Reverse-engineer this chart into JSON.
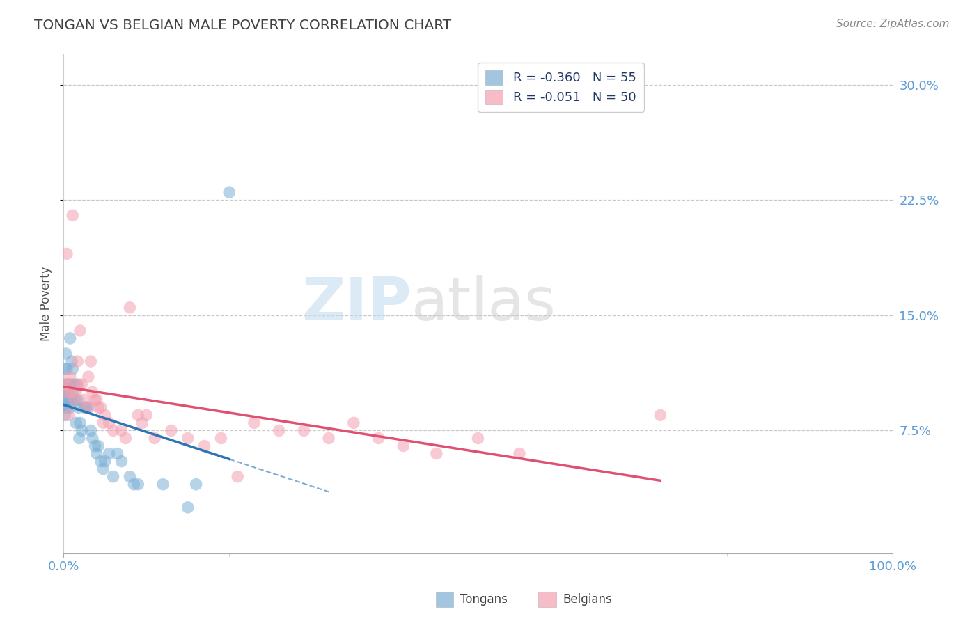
{
  "title": "TONGAN VS BELGIAN MALE POVERTY CORRELATION CHART",
  "source_text": "Source: ZipAtlas.com",
  "ylabel": "Male Poverty",
  "xlim": [
    0.0,
    1.0
  ],
  "ylim": [
    -0.005,
    0.32
  ],
  "yticks": [
    0.075,
    0.15,
    0.225,
    0.3
  ],
  "ytick_labels": [
    "7.5%",
    "15.0%",
    "22.5%",
    "30.0%"
  ],
  "xticks": [
    0.0,
    1.0
  ],
  "xtick_labels": [
    "0.0%",
    "100.0%"
  ],
  "tongan_color": "#7bafd4",
  "belgian_color": "#f4a0b0",
  "tongan_R": -0.36,
  "tongan_N": 55,
  "belgian_R": -0.051,
  "belgian_N": 50,
  "background_color": "#ffffff",
  "grid_color": "#c8c8c8",
  "title_color": "#404040",
  "axis_label_color": "#505050",
  "tick_label_color": "#5b9bd5",
  "legend_R_color": "#1f3864",
  "tongan_line_color": "#2e75b6",
  "belgian_line_color": "#e05070",
  "tongan_scatter": {
    "x": [
      0.001,
      0.001,
      0.002,
      0.002,
      0.002,
      0.003,
      0.003,
      0.003,
      0.004,
      0.004,
      0.005,
      0.005,
      0.005,
      0.006,
      0.006,
      0.007,
      0.007,
      0.008,
      0.008,
      0.009,
      0.01,
      0.01,
      0.011,
      0.012,
      0.013,
      0.014,
      0.015,
      0.016,
      0.017,
      0.018,
      0.019,
      0.02,
      0.022,
      0.025,
      0.027,
      0.03,
      0.033,
      0.035,
      0.038,
      0.04,
      0.042,
      0.045,
      0.048,
      0.05,
      0.055,
      0.06,
      0.065,
      0.07,
      0.08,
      0.085,
      0.09,
      0.12,
      0.15,
      0.16,
      0.2
    ],
    "y": [
      0.105,
      0.09,
      0.115,
      0.1,
      0.085,
      0.125,
      0.095,
      0.1,
      0.115,
      0.1,
      0.1,
      0.09,
      0.105,
      0.095,
      0.105,
      0.105,
      0.095,
      0.135,
      0.09,
      0.105,
      0.12,
      0.095,
      0.115,
      0.1,
      0.105,
      0.095,
      0.08,
      0.105,
      0.095,
      0.09,
      0.07,
      0.08,
      0.075,
      0.09,
      0.09,
      0.09,
      0.075,
      0.07,
      0.065,
      0.06,
      0.065,
      0.055,
      0.05,
      0.055,
      0.06,
      0.045,
      0.06,
      0.055,
      0.045,
      0.04,
      0.04,
      0.04,
      0.025,
      0.04,
      0.23
    ]
  },
  "belgian_scatter": {
    "x": [
      0.002,
      0.003,
      0.004,
      0.005,
      0.006,
      0.008,
      0.009,
      0.011,
      0.013,
      0.015,
      0.017,
      0.018,
      0.02,
      0.022,
      0.025,
      0.028,
      0.03,
      0.033,
      0.035,
      0.038,
      0.04,
      0.042,
      0.045,
      0.048,
      0.05,
      0.055,
      0.06,
      0.07,
      0.075,
      0.08,
      0.09,
      0.095,
      0.1,
      0.11,
      0.13,
      0.15,
      0.17,
      0.19,
      0.21,
      0.23,
      0.26,
      0.29,
      0.32,
      0.35,
      0.38,
      0.41,
      0.45,
      0.5,
      0.55,
      0.72
    ],
    "y": [
      0.105,
      0.1,
      0.19,
      0.105,
      0.085,
      0.11,
      0.1,
      0.215,
      0.095,
      0.1,
      0.12,
      0.105,
      0.14,
      0.105,
      0.095,
      0.09,
      0.11,
      0.12,
      0.1,
      0.095,
      0.095,
      0.09,
      0.09,
      0.08,
      0.085,
      0.08,
      0.075,
      0.075,
      0.07,
      0.155,
      0.085,
      0.08,
      0.085,
      0.07,
      0.075,
      0.07,
      0.065,
      0.07,
      0.045,
      0.08,
      0.075,
      0.075,
      0.07,
      0.08,
      0.07,
      0.065,
      0.06,
      0.07,
      0.06,
      0.085
    ]
  },
  "watermark_zip_color": "#c0d8ee",
  "watermark_atlas_color": "#c8c8c8"
}
